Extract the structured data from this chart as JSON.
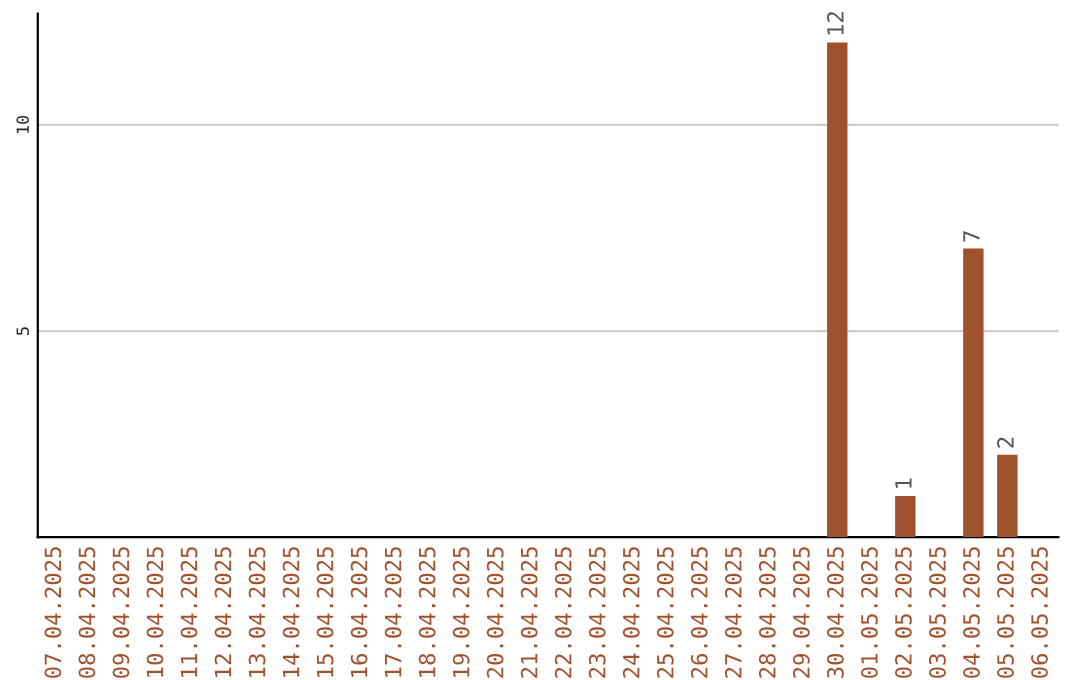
{
  "chart_data": {
    "type": "bar",
    "categories": [
      "07.04.2025",
      "08.04.2025",
      "09.04.2025",
      "10.04.2025",
      "11.04.2025",
      "12.04.2025",
      "13.04.2025",
      "14.04.2025",
      "15.04.2025",
      "16.04.2025",
      "17.04.2025",
      "18.04.2025",
      "19.04.2025",
      "20.04.2025",
      "21.04.2025",
      "22.04.2025",
      "23.04.2025",
      "24.04.2025",
      "25.04.2025",
      "26.04.2025",
      "27.04.2025",
      "28.04.2025",
      "29.04.2025",
      "30.04.2025",
      "01.05.2025",
      "02.05.2025",
      "03.05.2025",
      "04.05.2025",
      "05.05.2025",
      "06.05.2025"
    ],
    "values": [
      0,
      0,
      0,
      0,
      0,
      0,
      0,
      0,
      0,
      0,
      0,
      0,
      0,
      0,
      0,
      0,
      0,
      0,
      0,
      0,
      0,
      0,
      0,
      12,
      0,
      1,
      0,
      7,
      2,
      0
    ],
    "value_labels": [
      null,
      null,
      null,
      null,
      null,
      null,
      null,
      null,
      null,
      null,
      null,
      null,
      null,
      null,
      null,
      null,
      null,
      null,
      null,
      null,
      null,
      null,
      null,
      "12",
      null,
      "1",
      null,
      "7",
      "2",
      null
    ],
    "color": "#a0522d",
    "ylim": [
      0,
      12.7
    ],
    "yticks": [
      5,
      10
    ],
    "grid": "y",
    "legend": false
  }
}
